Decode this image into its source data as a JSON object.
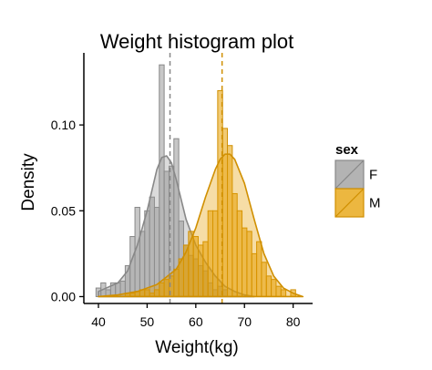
{
  "chart_data": {
    "type": "histogram",
    "title": "Weight histogram plot",
    "xlabel": "Weight(kg)",
    "ylabel": "Density",
    "xlim": [
      37,
      84
    ],
    "ylim": [
      -0.004,
      0.142
    ],
    "x_ticks": [
      40,
      50,
      60,
      70,
      80
    ],
    "y_ticks": [
      0.0,
      0.05,
      0.1
    ],
    "y_tick_labels": [
      "0.00",
      "0.05",
      "0.10"
    ],
    "grid": false,
    "legend_position": "right",
    "legend_title": "sex",
    "bin_width": 1,
    "series": [
      {
        "name": "F",
        "fill": "#999999",
        "stroke": "#888888",
        "bins": [
          {
            "x": 40,
            "y": 0.005
          },
          {
            "x": 41,
            "y": 0.008
          },
          {
            "x": 42,
            "y": 0.004
          },
          {
            "x": 43,
            "y": 0.008
          },
          {
            "x": 44,
            "y": 0.008
          },
          {
            "x": 45,
            "y": 0.009
          },
          {
            "x": 46,
            "y": 0.018
          },
          {
            "x": 47,
            "y": 0.035
          },
          {
            "x": 48,
            "y": 0.052
          },
          {
            "x": 49,
            "y": 0.038
          },
          {
            "x": 50,
            "y": 0.05
          },
          {
            "x": 51,
            "y": 0.058
          },
          {
            "x": 52,
            "y": 0.052
          },
          {
            "x": 53,
            "y": 0.135
          },
          {
            "x": 54,
            "y": 0.073
          },
          {
            "x": 55,
            "y": 0.076
          },
          {
            "x": 56,
            "y": 0.092
          },
          {
            "x": 57,
            "y": 0.044
          },
          {
            "x": 58,
            "y": 0.03
          },
          {
            "x": 59,
            "y": 0.024
          },
          {
            "x": 60,
            "y": 0.022
          },
          {
            "x": 61,
            "y": 0.018
          },
          {
            "x": 62,
            "y": 0.015
          },
          {
            "x": 63,
            "y": 0.008
          },
          {
            "x": 64,
            "y": 0.004
          },
          {
            "x": 65,
            "y": 0.006
          },
          {
            "x": 66,
            "y": 0.004
          }
        ],
        "density": [
          [
            40,
            0.003
          ],
          [
            44,
            0.008
          ],
          [
            46,
            0.015
          ],
          [
            48,
            0.03
          ],
          [
            50,
            0.05
          ],
          [
            52,
            0.074
          ],
          [
            53,
            0.081
          ],
          [
            54,
            0.082
          ],
          [
            55,
            0.078
          ],
          [
            56,
            0.068
          ],
          [
            58,
            0.045
          ],
          [
            60,
            0.03
          ],
          [
            62,
            0.02
          ],
          [
            64,
            0.012
          ],
          [
            66,
            0.006
          ],
          [
            68,
            0.003
          ],
          [
            70,
            0.001
          ],
          [
            72,
            0.0
          ]
        ],
        "mean": 54.7
      },
      {
        "name": "M",
        "fill": "#E69F00",
        "stroke": "#D08F00",
        "bins": [
          {
            "x": 46,
            "y": 0.002
          },
          {
            "x": 47,
            "y": 0.002
          },
          {
            "x": 48,
            "y": 0.003
          },
          {
            "x": 49,
            "y": 0.004
          },
          {
            "x": 50,
            "y": 0.004
          },
          {
            "x": 51,
            "y": 0.002
          },
          {
            "x": 52,
            "y": 0.004
          },
          {
            "x": 53,
            "y": 0.008
          },
          {
            "x": 54,
            "y": 0.01
          },
          {
            "x": 55,
            "y": 0.012
          },
          {
            "x": 56,
            "y": 0.016
          },
          {
            "x": 57,
            "y": 0.022
          },
          {
            "x": 58,
            "y": 0.03
          },
          {
            "x": 59,
            "y": 0.038
          },
          {
            "x": 60,
            "y": 0.035
          },
          {
            "x": 61,
            "y": 0.03
          },
          {
            "x": 62,
            "y": 0.032
          },
          {
            "x": 63,
            "y": 0.05
          },
          {
            "x": 64,
            "y": 0.05
          },
          {
            "x": 65,
            "y": 0.12
          },
          {
            "x": 66,
            "y": 0.098
          },
          {
            "x": 67,
            "y": 0.088
          },
          {
            "x": 68,
            "y": 0.06
          },
          {
            "x": 69,
            "y": 0.05
          },
          {
            "x": 70,
            "y": 0.04
          },
          {
            "x": 71,
            "y": 0.038
          },
          {
            "x": 72,
            "y": 0.025
          },
          {
            "x": 73,
            "y": 0.032
          },
          {
            "x": 74,
            "y": 0.02
          },
          {
            "x": 75,
            "y": 0.012
          },
          {
            "x": 76,
            "y": 0.01
          },
          {
            "x": 77,
            "y": 0.006
          },
          {
            "x": 78,
            "y": 0.004
          },
          {
            "x": 80,
            "y": 0.004
          }
        ],
        "density": [
          [
            40,
            0.0
          ],
          [
            44,
            0.001
          ],
          [
            48,
            0.003
          ],
          [
            52,
            0.007
          ],
          [
            56,
            0.016
          ],
          [
            58,
            0.026
          ],
          [
            60,
            0.04
          ],
          [
            62,
            0.058
          ],
          [
            64,
            0.074
          ],
          [
            65,
            0.08
          ],
          [
            66,
            0.083
          ],
          [
            67,
            0.083
          ],
          [
            68,
            0.08
          ],
          [
            70,
            0.066
          ],
          [
            72,
            0.045
          ],
          [
            74,
            0.025
          ],
          [
            76,
            0.012
          ],
          [
            78,
            0.005
          ],
          [
            80,
            0.002
          ],
          [
            82,
            0.0
          ]
        ],
        "mean": 65.4
      }
    ]
  }
}
